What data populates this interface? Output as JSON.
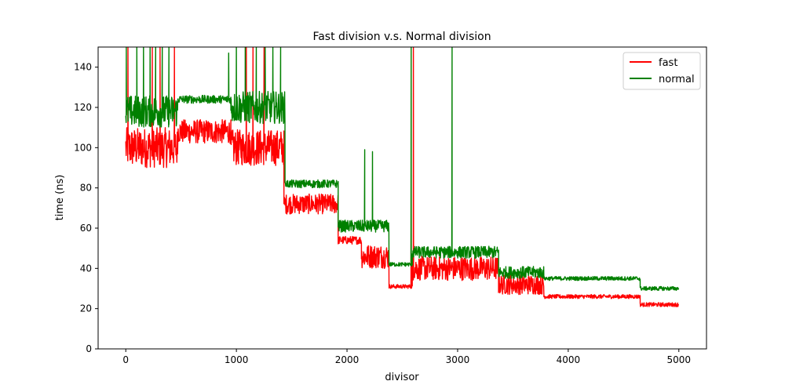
{
  "chart_data": {
    "type": "line",
    "title": "Fast division v.s. Normal division",
    "xlabel": "divisor",
    "ylabel": "time (ns)",
    "xlim": [
      -250,
      5250
    ],
    "ylim": [
      0,
      150
    ],
    "x_ticks": [
      0,
      1000,
      2000,
      3000,
      4000,
      5000
    ],
    "y_ticks": [
      0,
      20,
      40,
      60,
      80,
      100,
      120,
      140
    ],
    "grid": false,
    "legend_position": "top-right",
    "series": [
      {
        "name": "fast",
        "color": "#ff0000",
        "segments": [
          {
            "x_start": 0,
            "x_end": 470,
            "base": 100,
            "noise": 10
          },
          {
            "x_start": 470,
            "x_end": 950,
            "base": 108,
            "noise": 6
          },
          {
            "x_start": 950,
            "x_end": 1430,
            "base": 100,
            "noise": 9
          },
          {
            "x_start": 1430,
            "x_end": 1920,
            "base": 72,
            "noise": 5
          },
          {
            "x_start": 1920,
            "x_end": 2130,
            "base": 54,
            "noise": 2
          },
          {
            "x_start": 2130,
            "x_end": 2380,
            "base": 46,
            "noise": 6
          },
          {
            "x_start": 2380,
            "x_end": 2590,
            "base": 31,
            "noise": 1
          },
          {
            "x_start": 2590,
            "x_end": 3370,
            "base": 40,
            "noise": 6
          },
          {
            "x_start": 3370,
            "x_end": 3780,
            "base": 32,
            "noise": 5
          },
          {
            "x_start": 3780,
            "x_end": 4650,
            "base": 26,
            "noise": 1
          },
          {
            "x_start": 4650,
            "x_end": 5000,
            "base": 22,
            "noise": 1
          }
        ],
        "spikes": [
          {
            "x": 20,
            "y": 150
          },
          {
            "x": 240,
            "y": 150
          },
          {
            "x": 310,
            "y": 150
          },
          {
            "x": 440,
            "y": 150
          },
          {
            "x": 1090,
            "y": 150
          },
          {
            "x": 1150,
            "y": 150
          },
          {
            "x": 1250,
            "y": 150
          },
          {
            "x": 2580,
            "y": 73
          },
          {
            "x": 2600,
            "y": 150
          }
        ]
      },
      {
        "name": "normal",
        "color": "#008000",
        "segments": [
          {
            "x_start": 0,
            "x_end": 470,
            "base": 118,
            "noise": 8
          },
          {
            "x_start": 470,
            "x_end": 950,
            "base": 124,
            "noise": 2
          },
          {
            "x_start": 950,
            "x_end": 1440,
            "base": 120,
            "noise": 8
          },
          {
            "x_start": 1440,
            "x_end": 1920,
            "base": 82,
            "noise": 2
          },
          {
            "x_start": 1920,
            "x_end": 2380,
            "base": 61,
            "noise": 3
          },
          {
            "x_start": 2380,
            "x_end": 2590,
            "base": 42,
            "noise": 1
          },
          {
            "x_start": 2590,
            "x_end": 3370,
            "base": 48,
            "noise": 3
          },
          {
            "x_start": 3370,
            "x_end": 3780,
            "base": 38,
            "noise": 3
          },
          {
            "x_start": 3780,
            "x_end": 4650,
            "base": 35,
            "noise": 1
          },
          {
            "x_start": 4650,
            "x_end": 5000,
            "base": 30,
            "noise": 1
          }
        ],
        "spikes": [
          {
            "x": 5,
            "y": 150
          },
          {
            "x": 100,
            "y": 150
          },
          {
            "x": 160,
            "y": 150
          },
          {
            "x": 220,
            "y": 150
          },
          {
            "x": 270,
            "y": 150
          },
          {
            "x": 330,
            "y": 150
          },
          {
            "x": 390,
            "y": 150
          },
          {
            "x": 930,
            "y": 147
          },
          {
            "x": 1000,
            "y": 150
          },
          {
            "x": 1080,
            "y": 150
          },
          {
            "x": 1180,
            "y": 150
          },
          {
            "x": 1260,
            "y": 150
          },
          {
            "x": 1330,
            "y": 150
          },
          {
            "x": 1400,
            "y": 150
          },
          {
            "x": 2160,
            "y": 99
          },
          {
            "x": 2230,
            "y": 98
          },
          {
            "x": 2580,
            "y": 150
          },
          {
            "x": 2950,
            "y": 150
          }
        ]
      }
    ]
  }
}
